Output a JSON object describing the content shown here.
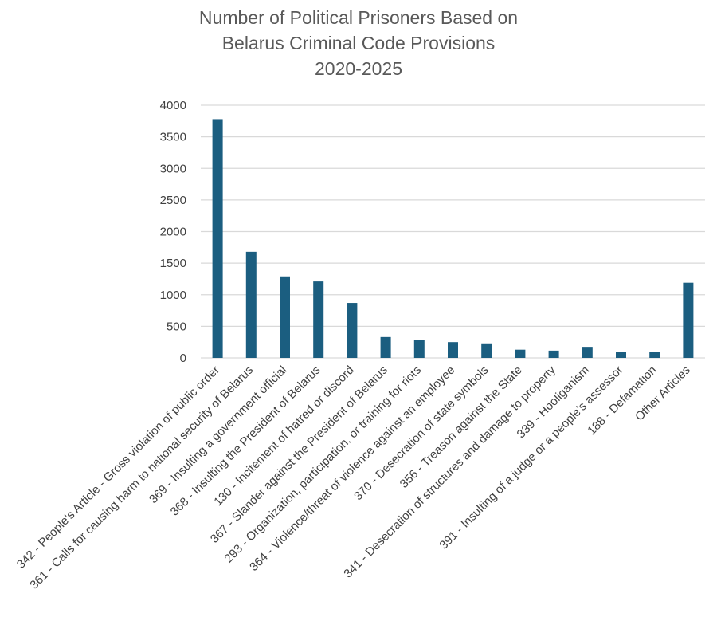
{
  "chart_data": {
    "type": "bar",
    "title_lines": [
      "Number of Political Prisoners Based on",
      "Belarus Criminal Code Provisions",
      "2020-2025"
    ],
    "xlabel": "",
    "ylabel": "",
    "ylim": [
      0,
      4000
    ],
    "yticks": [
      0,
      500,
      1000,
      1500,
      2000,
      2500,
      3000,
      3500,
      4000
    ],
    "grid": true,
    "legend": "none",
    "bar_color": "#1B5E80",
    "grid_color": "#D9D9D9",
    "categories": [
      "342 - People's Article - Gross violation of public order",
      "361 - Calls for causing harm to national security of Belarus",
      "369 - Insulting a government official",
      "368 - Insulting the President of Belarus",
      "130 - Incitement of hatred or discord",
      "367 - Slander against the President of Belarus",
      "293 - Organization, participation, or training for riots",
      "364 - Violence/threat of violence against an employee",
      "370 - Desecration of state symbols",
      "356 - Treason against the State",
      "341 - Desecration of structures and damage to property",
      "339 - Hooliganism",
      "391 - Insulting of a judge or a people's assessor",
      "188 - Defamation",
      "Other Articles"
    ],
    "values": [
      3780,
      1680,
      1290,
      1210,
      870,
      330,
      290,
      250,
      230,
      130,
      115,
      175,
      100,
      95,
      1190
    ]
  }
}
